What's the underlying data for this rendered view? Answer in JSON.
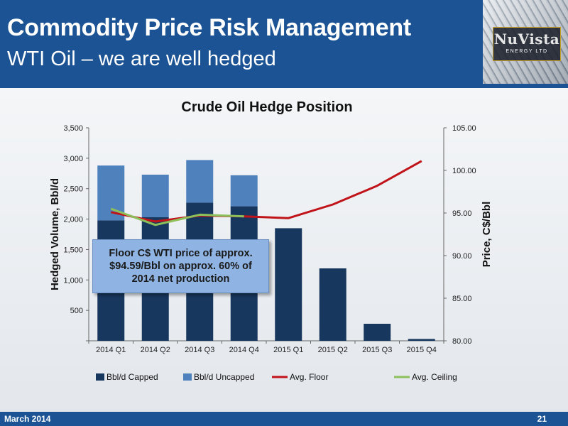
{
  "slide": {
    "title": "Commodity Price Risk Management",
    "subtitle": "WTI Oil – we are well hedged",
    "footer_left": "March 2014",
    "page_number": "21"
  },
  "logo": {
    "name": "NuVista",
    "tagline": "ENERGY LTD"
  },
  "callout": {
    "text": "Floor C$ WTI price of approx. $94.59/Bbl on approx. 60% of 2014 net production"
  },
  "colors": {
    "header_blue": "#1b5394",
    "capped": "#17375e",
    "uncapped": "#4f81bd",
    "floor": "#c0141a",
    "ceiling": "#8dc05a",
    "callout_fill": "#8fb4e3"
  },
  "chart_data": {
    "type": "bar",
    "title": "Crude Oil Hedge Position",
    "ylabel": "Hedged Volume, Bbl/d",
    "y2label": "Price, C$/Bbl",
    "categories": [
      "2014 Q1",
      "2014 Q2",
      "2014 Q3",
      "2014 Q4",
      "2015 Q1",
      "2015 Q2",
      "2015 Q3",
      "2015 Q4"
    ],
    "ylim": [
      0,
      3500
    ],
    "yticks": [
      0,
      500,
      1000,
      1500,
      2000,
      2500,
      3000,
      3500
    ],
    "ytick_labels": [
      "",
      "500",
      "1,000",
      "1,500",
      "2,000",
      "2,500",
      "3,000",
      "3,500"
    ],
    "y2lim": [
      80,
      105
    ],
    "y2ticks": [
      80,
      85,
      90,
      95,
      100,
      105
    ],
    "y2tick_labels": [
      "80.00",
      "85.00",
      "90.00",
      "95.00",
      "100.00",
      "105.00"
    ],
    "stacked": true,
    "series": [
      {
        "name": "Bbl/d Capped",
        "kind": "bar",
        "axis": "y",
        "color": "#17375e",
        "values": [
          1980,
          2030,
          2270,
          2210,
          1850,
          1190,
          280,
          30
        ]
      },
      {
        "name": "Bbl/d Uncapped",
        "kind": "bar",
        "axis": "y",
        "color": "#4f81bd",
        "values": [
          900,
          700,
          700,
          510,
          0,
          0,
          0,
          0
        ]
      },
      {
        "name": "Avg. Floor",
        "kind": "line",
        "axis": "y2",
        "color": "#c0141a",
        "values": [
          95.1,
          94.0,
          94.7,
          94.6,
          94.4,
          96.0,
          98.2,
          101.1
        ]
      },
      {
        "name": "Avg. Ceiling",
        "kind": "line",
        "axis": "y2",
        "color": "#8dc05a",
        "values": [
          95.5,
          93.6,
          94.8,
          94.6,
          null,
          null,
          null,
          null
        ]
      }
    ],
    "legend_position": "bottom",
    "grid": false
  }
}
